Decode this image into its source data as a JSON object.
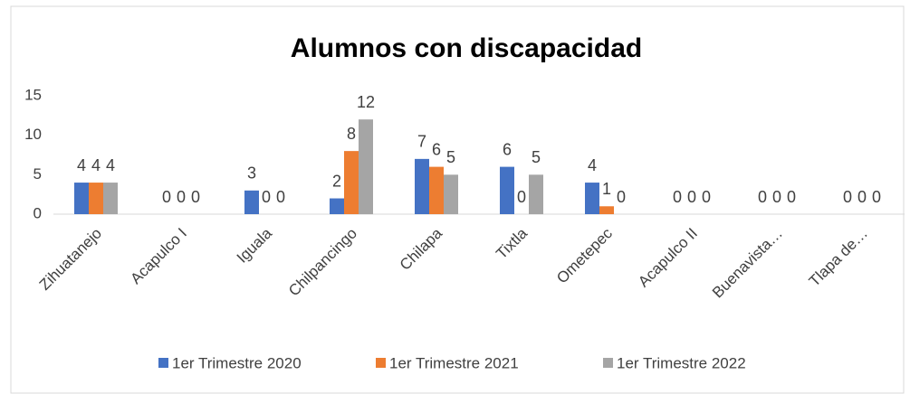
{
  "chart_data": {
    "type": "bar",
    "title": "Alumnos con discapacidad",
    "categories": [
      "Zihuatanejo",
      "Acapulco I",
      "Iguala",
      "Chilpancingo",
      "Chilapa",
      "Tixtla",
      "Ometepec",
      "Acapulco II",
      "Buenavista…",
      "Tlapa de…"
    ],
    "series": [
      {
        "name": "1er Trimestre 2020",
        "color": "#4472c4",
        "values": [
          4,
          0,
          3,
          2,
          7,
          6,
          4,
          0,
          0,
          0
        ]
      },
      {
        "name": "1er Trimestre 2021",
        "color": "#ed7d31",
        "values": [
          4,
          0,
          0,
          8,
          6,
          0,
          1,
          0,
          0,
          0
        ]
      },
      {
        "name": "1er Trimestre 2022",
        "color": "#a5a5a5",
        "values": [
          4,
          0,
          0,
          12,
          5,
          5,
          0,
          0,
          0,
          0
        ]
      }
    ],
    "ylim": [
      0,
      15
    ],
    "yticks": [
      0,
      5,
      10,
      15
    ],
    "grid": false,
    "legend": "bottom"
  }
}
